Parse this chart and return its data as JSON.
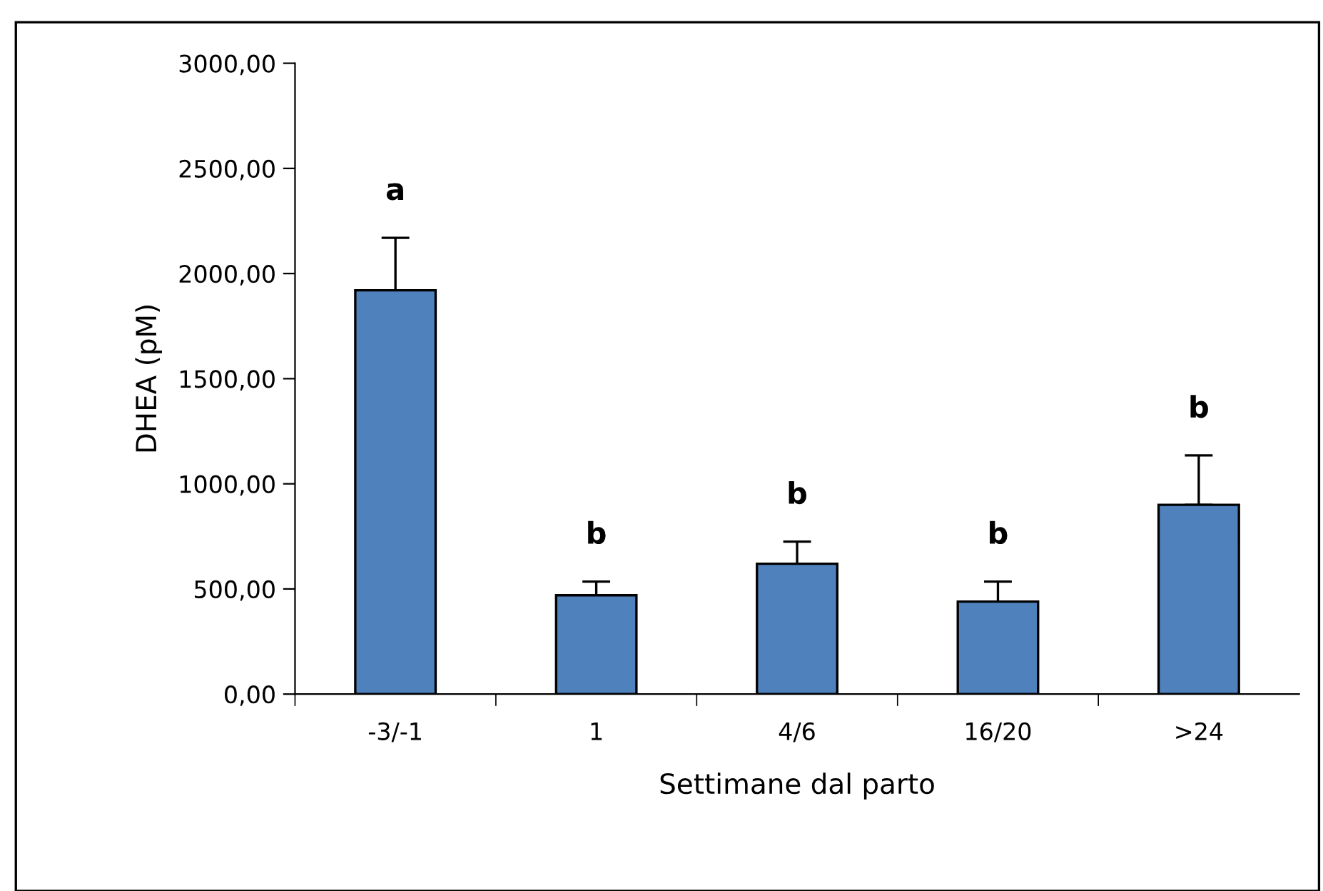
{
  "chart_data": {
    "type": "bar",
    "xlabel": "Settimane dal parto",
    "ylabel": "DHEA (pM)",
    "categories": [
      "-3/-1",
      "1",
      "4/6",
      "16/20",
      ">24"
    ],
    "values": [
      1920,
      470,
      620,
      440,
      900
    ],
    "errors": [
      [
        1920,
        2170
      ],
      [
        470,
        535
      ],
      [
        620,
        725
      ],
      [
        440,
        535
      ],
      [
        900,
        1135
      ]
    ],
    "color": "#4f81bd",
    "ylim": [
      0,
      3000
    ],
    "yticks": [
      {
        "value": 0,
        "label": "0,00"
      },
      {
        "value": 500,
        "label": "500,00"
      },
      {
        "value": 1000,
        "label": "1000,00"
      },
      {
        "value": 1500,
        "label": "1500,00"
      },
      {
        "value": 2000,
        "label": "2000,00"
      },
      {
        "value": 2500,
        "label": "2500,00"
      },
      {
        "value": 3000,
        "label": "3000,00"
      }
    ],
    "annotations": [
      "a",
      "b",
      "b",
      "b",
      "b"
    ]
  }
}
